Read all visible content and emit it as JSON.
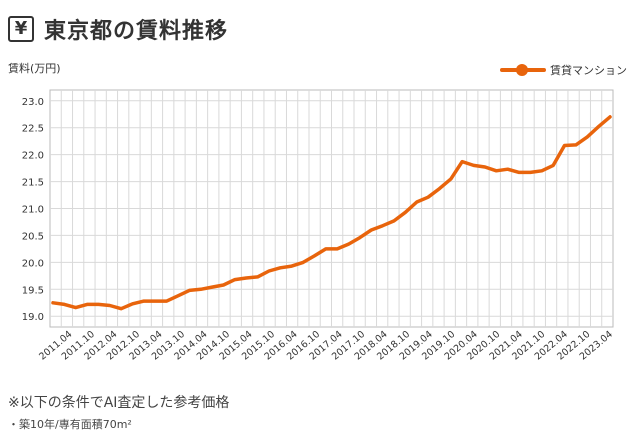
{
  "header": {
    "icon_glyph": "¥",
    "icon_name": "yen-icon",
    "title": "東京都の賃料推移"
  },
  "notes": {
    "condition": "※以下の条件でAI査定した参考価格",
    "spec": "・築10年/専有面積70m²"
  },
  "chart_data": {
    "type": "line",
    "title": "東京都の賃料推移",
    "ylabel": "賃料(万円)",
    "xlabel": "",
    "ylim": [
      18.8,
      23.2
    ],
    "yticks": [
      19.0,
      19.5,
      20.0,
      20.5,
      21.0,
      21.5,
      22.0,
      22.5,
      23.0
    ],
    "grid": true,
    "legend_position": "top-right",
    "x_tick_labels": [
      "2011.04",
      "2011.10",
      "2012.04",
      "2012.10",
      "2013.04",
      "2013.10",
      "2014.04",
      "2014.10",
      "2015.04",
      "2015.10",
      "2016.04",
      "2016.10",
      "2017.04",
      "2017.10",
      "2018.04",
      "2018.10",
      "2019.04",
      "2019.10",
      "2020.04",
      "2020.10",
      "2021.04",
      "2021.10",
      "2022.04",
      "2022.10",
      "2023.04"
    ],
    "series": [
      {
        "name": "賃貸マンション",
        "color": "#e8640c",
        "values": [
          19.25,
          19.22,
          19.16,
          19.22,
          19.22,
          19.2,
          19.14,
          19.23,
          19.28,
          19.28,
          19.28,
          19.38,
          19.48,
          19.5,
          19.54,
          19.58,
          19.68,
          19.71,
          19.73,
          19.84,
          19.9,
          19.93,
          20.0,
          20.12,
          20.25,
          20.25,
          20.34,
          20.46,
          20.6,
          20.68,
          20.77,
          20.93,
          21.12,
          21.21,
          21.37,
          21.55,
          21.87,
          21.8,
          21.77,
          21.7,
          21.73,
          21.67,
          21.67,
          21.7,
          21.8,
          22.17,
          22.18,
          22.33,
          22.52,
          22.7
        ]
      }
    ]
  }
}
